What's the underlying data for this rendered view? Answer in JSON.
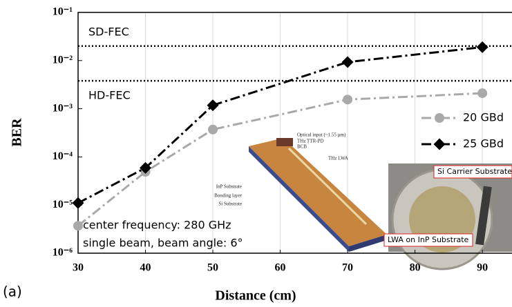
{
  "chart_data": {
    "type": "line",
    "panel_label": "(a)",
    "xlabel": "Distance (cm)",
    "ylabel": "BER",
    "xlim": [
      30,
      94.4
    ],
    "xticks": [
      30,
      40,
      50,
      60,
      70,
      80,
      90
    ],
    "ylim": [
      1e-06,
      0.1
    ],
    "yscale": "log",
    "yticks": [
      {
        "value": 0.1,
        "label": "10⁻¹"
      },
      {
        "value": 0.01,
        "label": "10⁻²"
      },
      {
        "value": 0.001,
        "label": "10⁻³"
      },
      {
        "value": 0.0001,
        "label": "10⁻⁴"
      },
      {
        "value": 1e-05,
        "label": "10⁻⁵"
      },
      {
        "value": 1e-06,
        "label": "10⁻⁶"
      }
    ],
    "grid": "x",
    "legend": "right",
    "x": [
      30,
      40,
      50,
      70,
      90
    ],
    "series": [
      {
        "name": "20 GBd",
        "color": "#a9a9a9",
        "marker": "circle",
        "values": [
          3.7e-06,
          4.9e-05,
          0.00037,
          0.00155,
          0.0021
        ]
      },
      {
        "name": "25 GBd",
        "color": "#000000",
        "marker": "diamond",
        "values": [
          1.1e-05,
          5.9e-05,
          0.00118,
          0.0093,
          0.019
        ]
      }
    ],
    "thresholds": [
      {
        "label": "SD-FEC",
        "value": 0.02
      },
      {
        "label": "HD-FEC",
        "value": 0.0038
      }
    ],
    "annotations": [
      "center frequency: 280 GHz",
      "single beam, beam angle: 6°"
    ],
    "inset_labels": {
      "diagram": [
        "Optical input (~1.55 µm)",
        "THz TTR-PD",
        "BCB",
        "THz LWA",
        "InP Substrate",
        "Bonding layer",
        "Si Substrate"
      ],
      "photo": [
        "Si Carrier Substrate",
        "LWA on InP Substrate"
      ]
    }
  }
}
